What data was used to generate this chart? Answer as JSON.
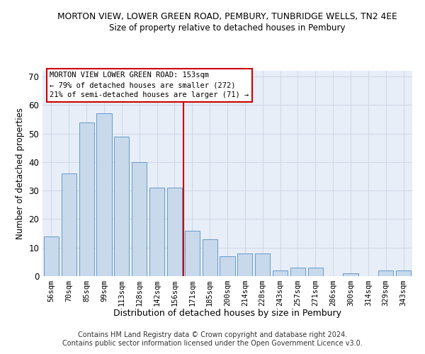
{
  "title": "MORTON VIEW, LOWER GREEN ROAD, PEMBURY, TUNBRIDGE WELLS, TN2 4EE",
  "subtitle": "Size of property relative to detached houses in Pembury",
  "xlabel": "Distribution of detached houses by size in Pembury",
  "ylabel": "Number of detached properties",
  "categories": [
    "56sqm",
    "70sqm",
    "85sqm",
    "99sqm",
    "113sqm",
    "128sqm",
    "142sqm",
    "156sqm",
    "171sqm",
    "185sqm",
    "200sqm",
    "214sqm",
    "228sqm",
    "243sqm",
    "257sqm",
    "271sqm",
    "286sqm",
    "300sqm",
    "314sqm",
    "329sqm",
    "343sqm"
  ],
  "values": [
    14,
    36,
    54,
    57,
    49,
    40,
    31,
    31,
    16,
    13,
    7,
    8,
    8,
    2,
    3,
    3,
    0,
    1,
    0,
    2,
    2
  ],
  "bar_color": "#c8d9ec",
  "bar_edge_color": "#6699cc",
  "vline_index": 7.5,
  "vline_color": "#cc0000",
  "annotation_title": "MORTON VIEW LOWER GREEN ROAD: 153sqm",
  "annotation_line1": "← 79% of detached houses are smaller (272)",
  "annotation_line2": "21% of semi-detached houses are larger (71) →",
  "annotation_box_color": "#ffffff",
  "annotation_box_edge": "#cc0000",
  "ylim": [
    0,
    72
  ],
  "yticks": [
    0,
    10,
    20,
    30,
    40,
    50,
    60,
    70
  ],
  "grid_color": "#d0d8e8",
  "background_color": "#e8eef8",
  "footer1": "Contains HM Land Registry data © Crown copyright and database right 2024.",
  "footer2": "Contains public sector information licensed under the Open Government Licence v3.0."
}
